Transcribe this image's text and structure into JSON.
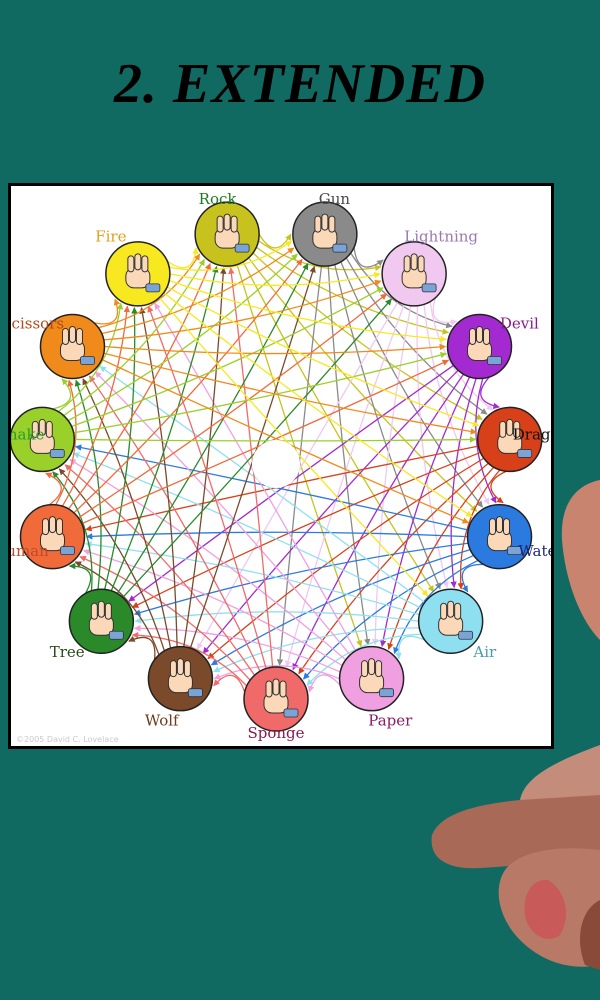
{
  "title": "2. EXTENDED",
  "copyright": "©2005 David C. Lovelace",
  "colors": {
    "background": "#106a62",
    "card": "#ffffff",
    "title": "#000000"
  },
  "nodes": [
    {
      "label": "Rock",
      "color": "#1f7a1f",
      "fill": "#c8c21e"
    },
    {
      "label": "Gun",
      "color": "#4a4a4a",
      "fill": "#8a8a8a"
    },
    {
      "label": "Lightning",
      "color": "#9a7ab0",
      "fill": "#f0c8f0"
    },
    {
      "label": "Devil",
      "color": "#8a1a8a",
      "fill": "#a32ad0"
    },
    {
      "label": "Dragon",
      "color": "#111111",
      "fill": "#d8401a"
    },
    {
      "label": "Water",
      "color": "#1a2a7a",
      "fill": "#2a7ae0"
    },
    {
      "label": "Air",
      "color": "#4a9ab0",
      "fill": "#8ee0f0"
    },
    {
      "label": "Paper",
      "color": "#8a1a6a",
      "fill": "#f0a0e0"
    },
    {
      "label": "Sponge",
      "color": "#8a1a4a",
      "fill": "#f06a6a"
    },
    {
      "label": "Wolf",
      "color": "#6a3a1a",
      "fill": "#7a4a2a"
    },
    {
      "label": "Tree",
      "color": "#2a4a1a",
      "fill": "#2a8a2a"
    },
    {
      "label": "Human",
      "color": "#c04a2a",
      "fill": "#f06a3a"
    },
    {
      "label": "Snake",
      "color": "#2a9a2a",
      "fill": "#9ad02a"
    },
    {
      "label": "Scissors",
      "color": "#b04a1a",
      "fill": "#f08a1a"
    },
    {
      "label": "Fire",
      "color": "#e0a020",
      "fill": "#f8e820"
    }
  ]
}
